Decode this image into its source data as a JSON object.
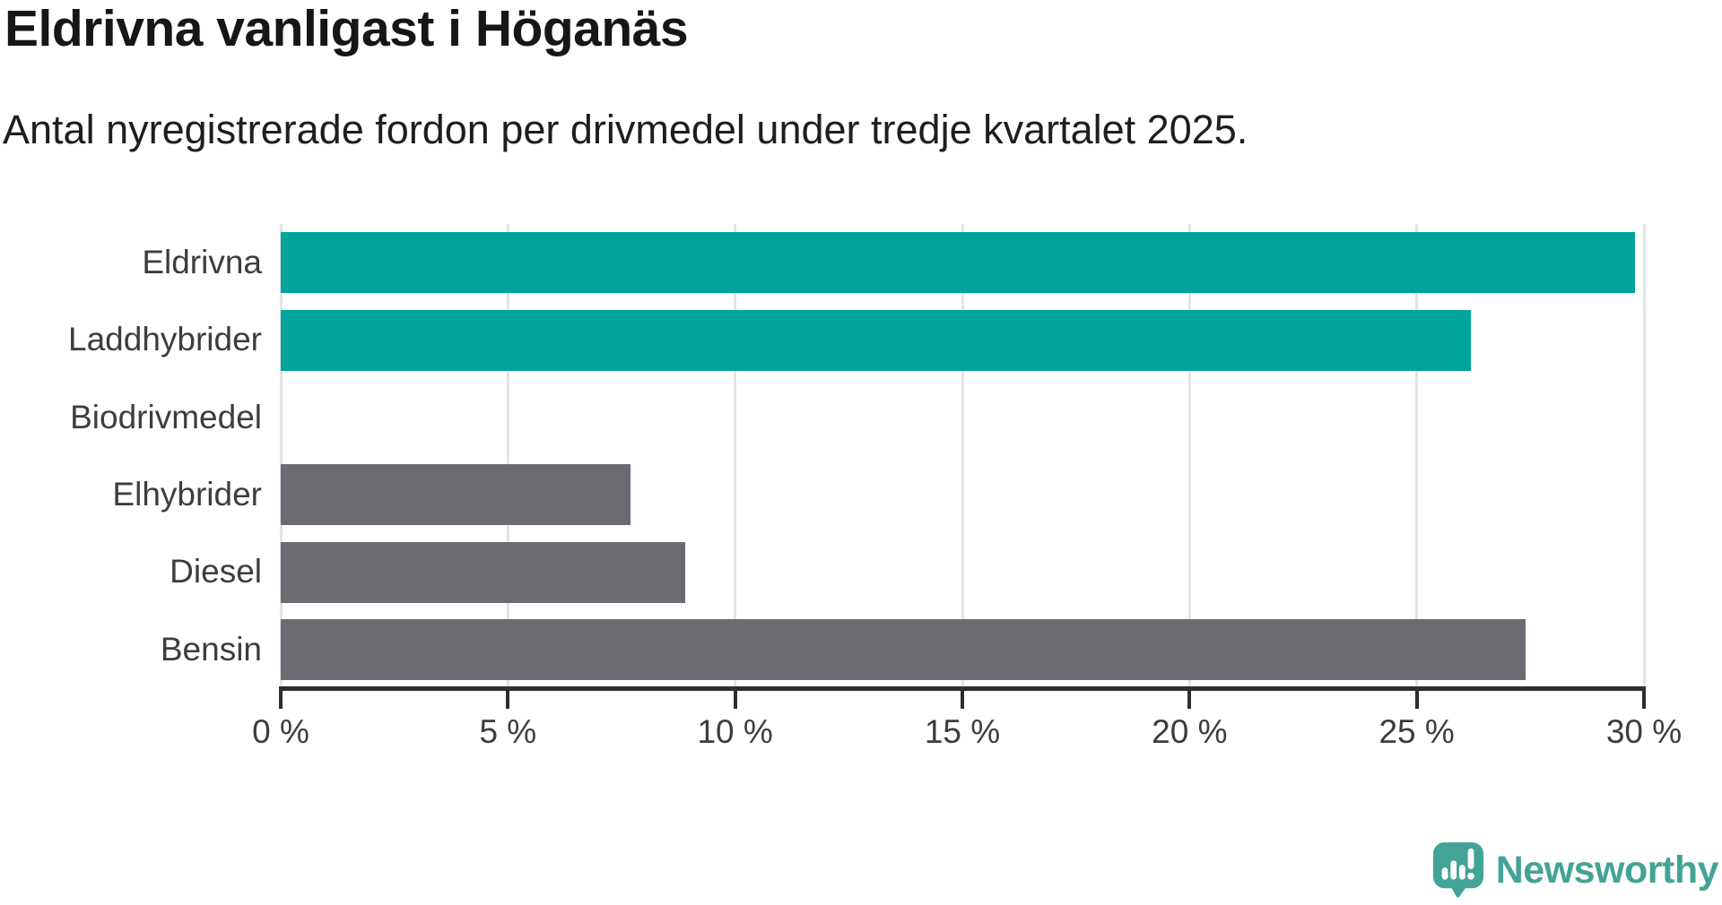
{
  "header": {
    "title": "Eldrivna vanligast i Höganäs",
    "subtitle": "Antal nyregistrerade fordon per drivmedel under tredje kvartalet 2025."
  },
  "chart_data": {
    "type": "bar",
    "orientation": "horizontal",
    "title": "Eldrivna vanligast i Höganäs",
    "subtitle": "Antal nyregistrerade fordon per drivmedel under tredje kvartalet 2025.",
    "categories": [
      "Eldrivna",
      "Laddhybrider",
      "Biodrivmedel",
      "Elhybrider",
      "Diesel",
      "Bensin"
    ],
    "values": [
      29.8,
      26.2,
      0,
      7.7,
      8.9,
      27.4
    ],
    "unit": "%",
    "xlim": [
      0,
      30
    ],
    "x_ticks": [
      0,
      5,
      10,
      15,
      20,
      25,
      30
    ],
    "x_tick_labels": [
      "0 %",
      "5 %",
      "10 %",
      "15 %",
      "20 %",
      "25 %",
      "30 %"
    ],
    "grid": true,
    "legend": false,
    "highlighted": [
      true,
      true,
      false,
      false,
      false,
      false
    ],
    "bar_colors": [
      "#00a49a",
      "#00a49a",
      "#6b6b71",
      "#6b6b71",
      "#6b6b71",
      "#6b6b71"
    ]
  },
  "colors": {
    "highlight_teal": "#00a49a",
    "neutral_gray": "#6b6b71",
    "axis": "#2e2e2e",
    "gridline": "#e4e4e4",
    "label_text": "#3d3d3d",
    "logo_teal": "#43a396"
  },
  "branding": {
    "logo_text": "Newsworthy"
  }
}
